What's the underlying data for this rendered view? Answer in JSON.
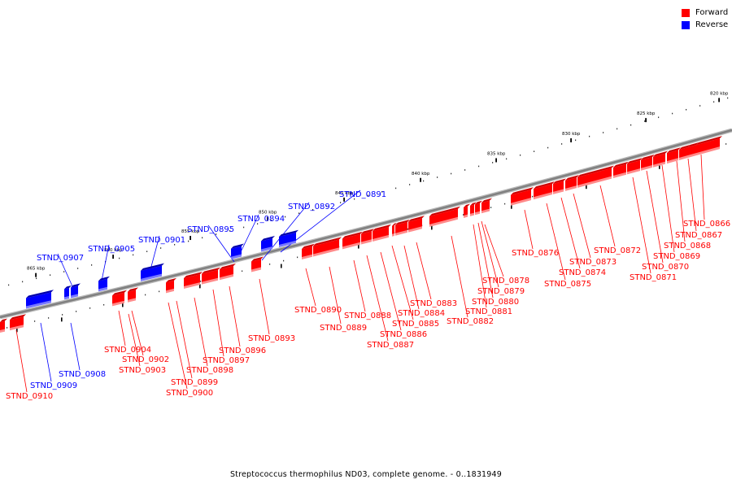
{
  "legend": [
    {
      "label": "Forward",
      "color": "#ff0000"
    },
    {
      "label": "Reverse",
      "color": "#0000ff"
    }
  ],
  "footer": "Streptococcus thermophilus ND03, complete genome. - 0..1831949",
  "ticks": [
    "820 kbp",
    "825 kbp",
    "830 kbp",
    "835 kbp",
    "840 kbp",
    "845 kbp",
    "850 kbp",
    "855 kbp",
    "860 kbp",
    "865 kbp"
  ],
  "genes_forward": [
    "STND_0866",
    "STND_0867",
    "STND_0868",
    "STND_0869",
    "STND_0870",
    "STND_0871",
    "STND_0872",
    "STND_0873",
    "STND_0874",
    "STND_0875",
    "STND_0876",
    "STND_0878",
    "STND_0879",
    "STND_0880",
    "STND_0881",
    "STND_0882",
    "STND_0883",
    "STND_0884",
    "STND_0885",
    "STND_0886",
    "STND_0887",
    "STND_0888",
    "STND_0889",
    "STND_0890",
    "STND_0893",
    "STND_0896",
    "STND_0897",
    "STND_0898",
    "STND_0899",
    "STND_0900",
    "STND_0902",
    "STND_0903",
    "STND_0904",
    "STND_0910"
  ],
  "genes_reverse": [
    "STND_0891",
    "STND_0892",
    "STND_0894",
    "STND_0895",
    "STND_0901",
    "STND_0905",
    "STND_0907",
    "STND_0908",
    "STND_0909"
  ],
  "colors": {
    "forward": "#ff0000",
    "reverse": "#0000ff",
    "backbone": "#808080"
  }
}
